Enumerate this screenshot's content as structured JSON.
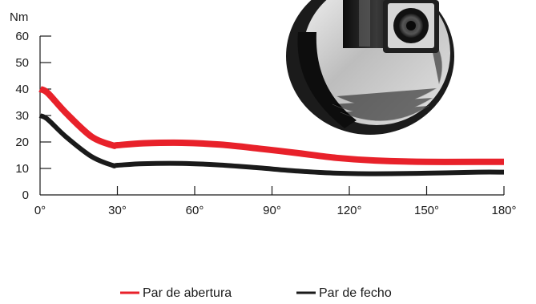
{
  "chart_data": {
    "type": "line",
    "ylabel": "Nm",
    "ylim": [
      0,
      60
    ],
    "xlim": [
      0,
      180
    ],
    "y_ticks": [
      "0",
      "10",
      "20",
      "30",
      "40",
      "50",
      "60"
    ],
    "x_ticks": [
      "0°",
      "30°",
      "60°",
      "90°",
      "120°",
      "150°",
      "180°"
    ],
    "grid": false,
    "legend_position": "bottom-center",
    "series": [
      {
        "name": "Par de abertura",
        "color": "#e8212a",
        "x": [
          0,
          3,
          10,
          20,
          28,
          30,
          40,
          55,
          70,
          85,
          100,
          115,
          130,
          150,
          170,
          180
        ],
        "y": [
          40,
          38.5,
          31,
          22,
          18.8,
          18.8,
          19.5,
          19.7,
          19,
          17.5,
          15.8,
          14,
          13,
          12.5,
          12.5,
          12.5
        ]
      },
      {
        "name": "Par de fecho",
        "color": "#1a1a1a",
        "x": [
          0,
          3,
          10,
          20,
          28,
          30,
          40,
          55,
          70,
          85,
          100,
          115,
          130,
          150,
          170,
          180
        ],
        "y": [
          30,
          28.5,
          22,
          14.5,
          11.2,
          11.2,
          11.8,
          11.9,
          11.3,
          10.2,
          9,
          8.2,
          8,
          8.2,
          8.6,
          8.6
        ]
      }
    ]
  },
  "photo": {
    "subject": "hinge-cylinder-photo"
  }
}
